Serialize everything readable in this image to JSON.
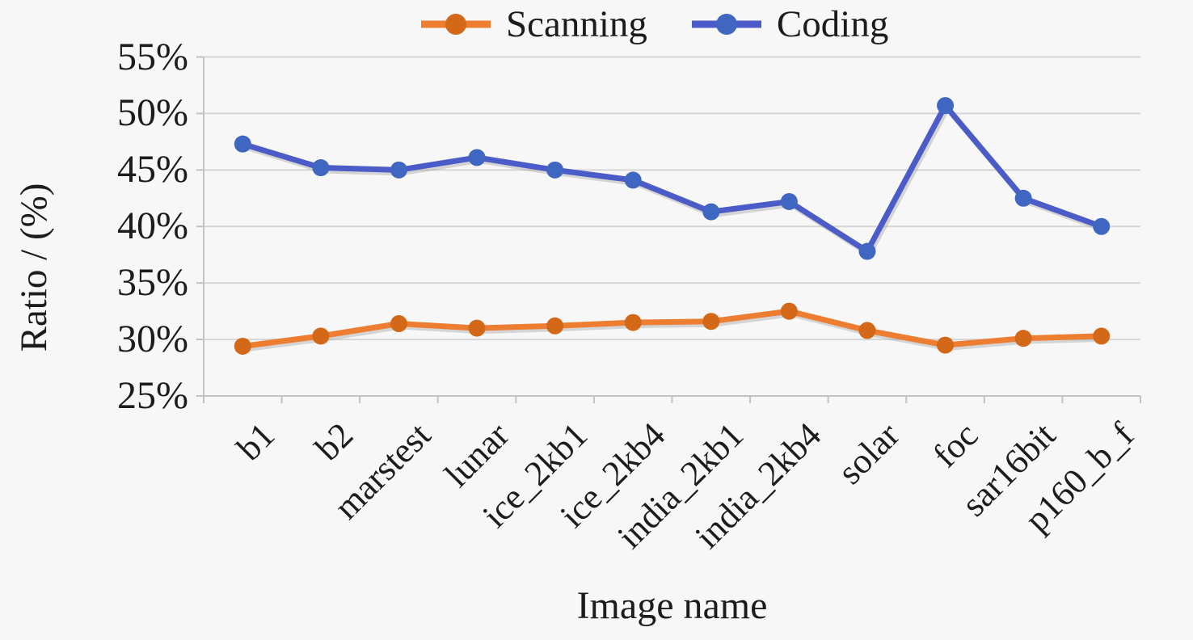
{
  "chart_data": {
    "type": "line",
    "title": "",
    "xlabel": "Image name",
    "ylabel": "Ratio / (%)",
    "categories": [
      "b1",
      "b2",
      "marstest",
      "lunar",
      "ice_2kb1",
      "ice_2kb4",
      "india_2kb1",
      "india_2kb4",
      "solar",
      "foc",
      "sar16bit",
      "p160_b_f"
    ],
    "series": [
      {
        "name": "Scanning",
        "color": "#ED7D31",
        "marker_color": "#D26818",
        "values": [
          29.4,
          30.3,
          31.4,
          31.0,
          31.2,
          31.5,
          31.6,
          32.5,
          30.8,
          29.5,
          30.1,
          30.3
        ]
      },
      {
        "name": "Coding",
        "color": "#4B5BC8",
        "marker_color": "#3F66C0",
        "values": [
          47.3,
          45.2,
          45.0,
          46.1,
          45.0,
          44.1,
          41.3,
          42.2,
          37.8,
          50.7,
          42.5,
          40.0
        ]
      }
    ],
    "ylim": [
      25,
      55
    ],
    "ytick_step": 5,
    "ytick_labels": [
      "25%",
      "30%",
      "35%",
      "40%",
      "45%",
      "50%",
      "55%"
    ],
    "grid": true,
    "legend_position": "top"
  },
  "colors": {
    "grid": "#d6d6d6",
    "axis": "#c2c2c2",
    "shadow": "#9a9a9a",
    "text": "#1c1c1c",
    "background": "#f7f7f7"
  }
}
